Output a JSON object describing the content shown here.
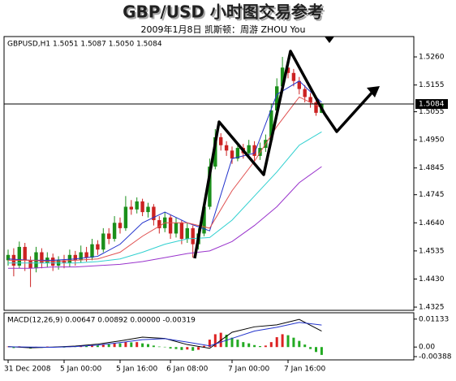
{
  "chart_data": {
    "type": "candlestick",
    "title": "GBP/USD 小时图交易参考",
    "subtitle": "2009年1月8日   凯斯顿：周游 ZHOU You",
    "legend": "GBPUSD,H1  1.5051 1.5087 1.5050 1.5084",
    "price_label": "1.5084",
    "up_color": "#1a8f1a",
    "down_color": "#cc2222",
    "categories": [
      "31 Dec 2008",
      null,
      null,
      null,
      null,
      null,
      null,
      null,
      null,
      null,
      "5 Jan 00:00",
      null,
      null,
      null,
      null,
      null,
      null,
      null,
      null,
      null,
      "5 Jan 16:00",
      null,
      null,
      null,
      null,
      null,
      null,
      null,
      null,
      "6 Jan 08:00",
      null,
      null,
      null,
      null,
      null,
      null,
      null,
      null,
      null,
      null,
      "7 Jan 00:00",
      null,
      null,
      null,
      null,
      null,
      null,
      null,
      null,
      null,
      "7 Jan 16:00",
      null,
      null,
      null,
      null,
      null,
      null
    ],
    "open": [
      1.45,
      1.452,
      1.448,
      1.455,
      1.45,
      1.447,
      1.453,
      1.449,
      1.451,
      1.448,
      1.45,
      1.449,
      1.452,
      1.45,
      1.453,
      1.451,
      1.456,
      1.454,
      1.46,
      1.458,
      1.464,
      1.462,
      1.47,
      1.469,
      1.472,
      1.468,
      1.47,
      1.465,
      1.462,
      1.466,
      1.46,
      1.464,
      1.458,
      1.462,
      1.456,
      1.46,
      1.47,
      1.485,
      1.496,
      1.493,
      1.491,
      1.488,
      1.492,
      1.49,
      1.493,
      1.489,
      1.492,
      1.495,
      1.506,
      1.515,
      1.522,
      1.52,
      1.517,
      1.514,
      1.511,
      1.509,
      1.5051
    ],
    "high": [
      1.454,
      1.4545,
      1.457,
      1.4565,
      1.4515,
      1.455,
      1.4545,
      1.453,
      1.4525,
      1.4515,
      1.452,
      1.454,
      1.4535,
      1.4555,
      1.455,
      1.458,
      1.4575,
      1.462,
      1.462,
      1.4665,
      1.466,
      1.474,
      1.4725,
      1.4735,
      1.473,
      1.4715,
      1.471,
      1.4665,
      1.468,
      1.467,
      1.466,
      1.465,
      1.464,
      1.463,
      1.462,
      1.472,
      1.488,
      1.499,
      1.4975,
      1.4945,
      1.4925,
      1.494,
      1.4935,
      1.495,
      1.4945,
      1.494,
      1.497,
      1.5085,
      1.518,
      1.526,
      1.524,
      1.5215,
      1.5185,
      1.5155,
      1.5125,
      1.51,
      1.5087
    ],
    "low": [
      1.448,
      1.444,
      1.447,
      1.446,
      1.44,
      1.4455,
      1.447,
      1.4475,
      1.446,
      1.4465,
      1.447,
      1.4475,
      1.448,
      1.449,
      1.4495,
      1.45,
      1.452,
      1.453,
      1.456,
      1.457,
      1.46,
      1.461,
      1.467,
      1.4675,
      1.4665,
      1.466,
      1.463,
      1.46,
      1.4605,
      1.458,
      1.4585,
      1.456,
      1.4565,
      1.451,
      1.454,
      1.459,
      1.469,
      1.484,
      1.491,
      1.489,
      1.486,
      1.487,
      1.488,
      1.4885,
      1.487,
      1.4875,
      1.4905,
      1.494,
      1.505,
      1.514,
      1.518,
      1.515,
      1.512,
      1.509,
      1.507,
      1.504,
      1.505
    ],
    "close": [
      1.452,
      1.448,
      1.455,
      1.45,
      1.447,
      1.453,
      1.449,
      1.451,
      1.448,
      1.45,
      1.449,
      1.452,
      1.45,
      1.453,
      1.451,
      1.456,
      1.454,
      1.46,
      1.458,
      1.464,
      1.462,
      1.47,
      1.469,
      1.472,
      1.468,
      1.47,
      1.465,
      1.462,
      1.466,
      1.46,
      1.464,
      1.458,
      1.462,
      1.456,
      1.46,
      1.47,
      1.485,
      1.496,
      1.493,
      1.491,
      1.488,
      1.492,
      1.49,
      1.493,
      1.489,
      1.492,
      1.495,
      1.506,
      1.515,
      1.522,
      1.52,
      1.517,
      1.514,
      1.511,
      1.509,
      1.5051,
      1.5084
    ],
    "moving_averages": [
      {
        "color": "#2233cc",
        "x": [
          0,
          4,
          8,
          12,
          16,
          20,
          24,
          28,
          32,
          36,
          40,
          44,
          48,
          52,
          56
        ],
        "values": [
          1.4505,
          1.45,
          1.45,
          1.4505,
          1.4515,
          1.456,
          1.464,
          1.468,
          1.464,
          1.461,
          1.488,
          1.49,
          1.512,
          1.517,
          1.509
        ]
      },
      {
        "color": "#e05050",
        "x": [
          0,
          4,
          8,
          12,
          16,
          20,
          24,
          28,
          32,
          36,
          40,
          44,
          48,
          52,
          56
        ],
        "values": [
          1.45,
          1.45,
          1.4495,
          1.45,
          1.4505,
          1.453,
          1.459,
          1.464,
          1.464,
          1.462,
          1.476,
          1.487,
          1.5,
          1.511,
          1.507
        ]
      },
      {
        "color": "#30d0d0",
        "x": [
          0,
          4,
          8,
          12,
          16,
          20,
          24,
          28,
          32,
          36,
          40,
          44,
          48,
          52,
          56
        ],
        "values": [
          1.449,
          1.449,
          1.449,
          1.449,
          1.4495,
          1.4505,
          1.453,
          1.456,
          1.458,
          1.4585,
          1.465,
          1.474,
          1.483,
          1.493,
          1.498
        ]
      },
      {
        "color": "#9933cc",
        "x": [
          0,
          4,
          8,
          12,
          16,
          20,
          24,
          28,
          32,
          36,
          40,
          44,
          48,
          52,
          56
        ],
        "values": [
          1.447,
          1.447,
          1.4475,
          1.4475,
          1.448,
          1.4485,
          1.4495,
          1.451,
          1.4525,
          1.4535,
          1.457,
          1.463,
          1.47,
          1.479,
          1.485
        ]
      }
    ],
    "ylim": [
      1.4313,
      1.5336
    ],
    "yticks": [
      {
        "value": 1.526,
        "label": "1.5260"
      },
      1.5155,
      1.5055,
      {
        "value": 1.495,
        "label": "1.4950"
      },
      1.4845,
      1.4745,
      {
        "value": 1.464,
        "label": "1.4640"
      },
      1.4535,
      {
        "value": 1.443,
        "label": "1.4430"
      },
      1.4325
    ],
    "macd": {
      "legend": "MACD(12,26,9) 0.00647 0.00892 0.00000 -0.00319",
      "up_color": "#dd2222",
      "down_color": "#22aa22",
      "histogram": [
        0.0002,
        -0.0004,
        0.0003,
        -0.0002,
        -0.0006,
        0.0001,
        -0.0003,
        0.0002,
        -0.0001,
        0.0001,
        -0.0002,
        0.0003,
        0.0002,
        0.0005,
        0.0004,
        0.0008,
        0.0007,
        0.0012,
        0.0011,
        0.0016,
        0.0015,
        0.0021,
        0.0019,
        0.002,
        0.0015,
        0.0012,
        0.0006,
        0.0002,
        0.0001,
        -0.0006,
        -0.0008,
        -0.0012,
        -0.001,
        -0.0015,
        -0.0011,
        0.0005,
        0.003,
        0.0052,
        0.0058,
        0.005,
        0.0038,
        0.003,
        0.002,
        0.0015,
        0.0008,
        0.0004,
        0.0006,
        0.002,
        0.004,
        0.0052,
        0.0048,
        0.0038,
        0.0025,
        0.001,
        -0.0008,
        -0.002,
        -0.00319
      ],
      "lines": [
        {
          "color": "#000000",
          "x": [
            0,
            4,
            8,
            12,
            16,
            20,
            24,
            28,
            32,
            36,
            40,
            44,
            48,
            52,
            56
          ],
          "values": [
            0.0002,
            -0.0003,
            0.0,
            0.0004,
            0.0012,
            0.0025,
            0.004,
            0.0035,
            0.001,
            -0.0005,
            0.006,
            0.0082,
            0.009,
            0.0112,
            0.00647
          ]
        },
        {
          "color": "#2233cc",
          "x": [
            0,
            4,
            8,
            12,
            16,
            20,
            24,
            28,
            32,
            36,
            40,
            44,
            48,
            52,
            56
          ],
          "values": [
            0.0001,
            0.0,
            -0.0001,
            0.0002,
            0.0008,
            0.0018,
            0.003,
            0.0034,
            0.002,
            0.0005,
            0.0035,
            0.0065,
            0.008,
            0.01,
            0.00892
          ]
        }
      ],
      "ylim": [
        -0.0052,
        0.0139
      ],
      "yticks": [
        0.01133,
        {
          "value": 0,
          "label": "0.00"
        },
        -0.00388
      ]
    }
  }
}
